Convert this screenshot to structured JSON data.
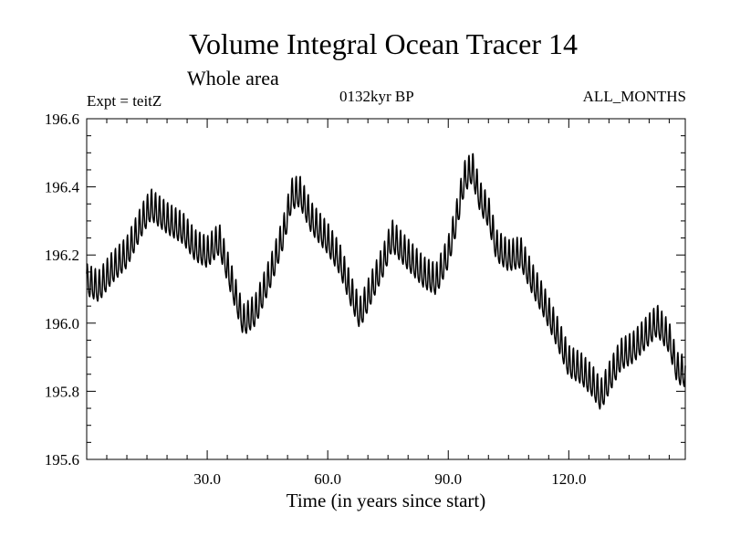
{
  "chart_data": {
    "type": "line",
    "title": "Volume Integral Ocean Tracer 14",
    "subtitle": "Whole area",
    "left_label": "Expt = teitZ",
    "center_label": "0132kyr BP",
    "right_label": "ALL_MONTHS",
    "xlabel": "Time (in years since start)",
    "ylabel": "",
    "xlim": [
      0,
      149
    ],
    "ylim": [
      195.6,
      196.6
    ],
    "xticks": [
      30,
      60,
      90,
      120
    ],
    "xtick_labels": [
      "30.0",
      "60.0",
      "90.0",
      "120.0"
    ],
    "yticks": [
      195.6,
      195.8,
      196.0,
      196.2,
      196.4,
      196.6
    ],
    "ytick_labels": [
      "195.6",
      "195.8",
      "196.0",
      "196.2",
      "196.4",
      "196.6"
    ],
    "seasonal_amplitude": 0.045,
    "series": [
      {
        "name": "Volume Integral Ocean Tracer 14",
        "x": [
          0,
          3,
          6,
          10,
          14,
          16,
          20,
          24,
          27,
          30,
          33,
          36,
          39,
          42,
          46,
          49,
          51,
          53,
          56,
          60,
          63,
          66,
          68,
          71,
          74,
          76,
          78,
          81,
          84,
          87,
          90,
          92,
          94,
          96,
          98,
          100,
          102,
          105,
          108,
          111,
          114,
          117,
          120,
          123,
          126,
          128,
          130,
          133,
          136,
          139,
          142,
          145,
          147,
          149
        ],
        "y": [
          196.12,
          196.1,
          196.15,
          196.2,
          196.3,
          196.34,
          196.3,
          196.27,
          196.22,
          196.2,
          196.24,
          196.12,
          196.0,
          196.03,
          196.15,
          196.26,
          196.37,
          196.38,
          196.3,
          196.24,
          196.18,
          196.08,
          196.02,
          196.1,
          196.18,
          196.25,
          196.22,
          196.18,
          196.14,
          196.12,
          196.2,
          196.3,
          196.42,
          196.45,
          196.36,
          196.32,
          196.22,
          196.19,
          196.2,
          196.12,
          196.05,
          195.97,
          195.88,
          195.86,
          195.82,
          195.78,
          195.83,
          195.9,
          195.92,
          195.96,
          196.0,
          195.95,
          195.86,
          195.85
        ]
      }
    ]
  }
}
